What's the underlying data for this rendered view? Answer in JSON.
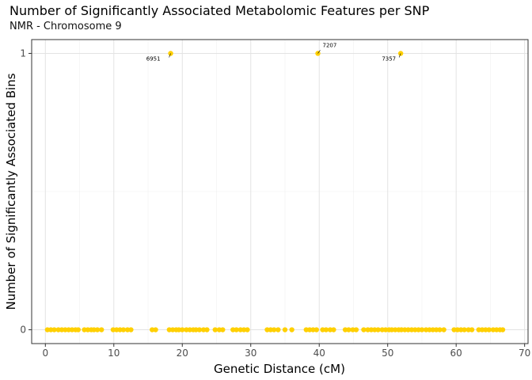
{
  "chart_data": {
    "type": "scatter",
    "title": "Number of Significantly Associated Metabolomic Features per SNP",
    "subtitle": "NMR - Chromosome 9",
    "xlabel": "Genetic Distance (cM)",
    "ylabel": "Number of Significantly Associated Bins",
    "xlim": [
      -2,
      70.5
    ],
    "ylim": [
      -0.05,
      1.05
    ],
    "x_ticks": [
      0,
      10,
      20,
      30,
      40,
      50,
      60,
      70
    ],
    "y_ticks": [
      0,
      1
    ],
    "grid": true,
    "point_color": "#FFD000",
    "annotations": [
      {
        "label": "6951",
        "x": 18.3,
        "y": 1
      },
      {
        "label": "7207",
        "x": 39.8,
        "y": 1
      },
      {
        "label": "7357",
        "x": 51.9,
        "y": 1
      }
    ],
    "points_at_zero_x": [
      0.3,
      0.8,
      1.3,
      1.9,
      2.4,
      2.9,
      3.4,
      3.9,
      4.4,
      4.8,
      5.7,
      6.2,
      6.7,
      7.1,
      7.6,
      8.2,
      9.9,
      10.4,
      10.9,
      11.4,
      12.0,
      12.5,
      15.6,
      16.1,
      18.1,
      18.6,
      19.1,
      19.5,
      20.0,
      20.6,
      21.1,
      21.6,
      22.0,
      22.5,
      23.1,
      23.6,
      24.8,
      25.4,
      25.9,
      27.4,
      27.9,
      28.5,
      29.0,
      29.5,
      32.4,
      32.9,
      33.4,
      34.0,
      35.0,
      36.0,
      38.1,
      38.6,
      39.1,
      39.6,
      40.5,
      41.0,
      41.6,
      42.1,
      43.8,
      44.3,
      44.9,
      45.4,
      46.5,
      47.1,
      47.6,
      48.1,
      48.6,
      49.2,
      49.7,
      50.2,
      50.6,
      51.1,
      51.6,
      52.0,
      52.5,
      53.0,
      53.5,
      54.0,
      54.5,
      55.0,
      55.6,
      56.1,
      56.6,
      57.1,
      57.6,
      58.2,
      59.7,
      60.2,
      60.7,
      61.2,
      61.8,
      62.3,
      63.3,
      63.8,
      64.3,
      64.8,
      65.4,
      65.9,
      66.4,
      66.8
    ],
    "points_at_one_x": [
      18.3,
      39.8,
      51.9
    ]
  }
}
